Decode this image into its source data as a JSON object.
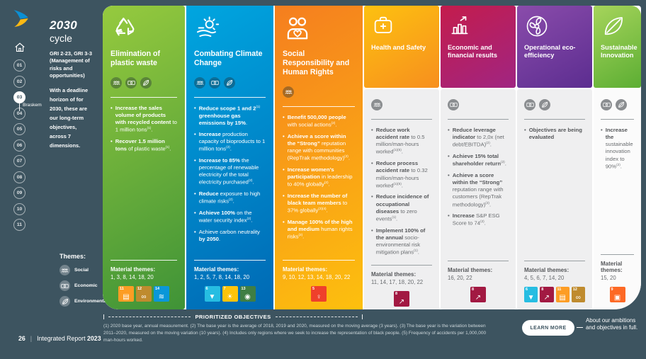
{
  "sidebar": {
    "title": "2030",
    "title_sub": "cycle",
    "gri": "GRI 2-23, GRI 3-3 (Management of risks and opportunities)",
    "intro": "With a deadline horizon of for 2030, these are our long-term objectives, across 7 dimensions.",
    "nav": {
      "items": [
        "01",
        "02",
        "03",
        "04",
        "05",
        "06",
        "07",
        "08",
        "09",
        "10",
        "11"
      ],
      "active": "03",
      "active_label": "Braskem"
    },
    "themes_legend": {
      "title": "Themes:",
      "items": [
        {
          "id": "social",
          "icon": "people-icon",
          "label": "Social"
        },
        {
          "id": "economic",
          "icon": "banknote-icon",
          "label": "Economic"
        },
        {
          "id": "environmental",
          "icon": "leaf-icon",
          "label": "Environmental"
        }
      ]
    }
  },
  "columns": [
    {
      "id": "plastic-waste",
      "layout": "full",
      "icon": "recycle-icon",
      "title": "Elimination of plastic waste",
      "header_colors": [
        "#96ca3e",
        "#3f9337"
      ],
      "themes": [
        "social",
        "economic",
        "environmental"
      ],
      "bullets": [
        "**Increase the sales volume of products with recycled content** to 1 million tons^(1)^.",
        "**Recover 1.5 million tons** of plastic waste^(1)^."
      ],
      "material_label": "Material themes:",
      "material_themes": "1, 3, 8, 14, 18, 20",
      "sdgs": [
        {
          "number": "11",
          "color": "#fd9d24"
        },
        {
          "number": "12",
          "color": "#bf8b2e"
        },
        {
          "number": "14",
          "color": "#0a97d9"
        }
      ]
    },
    {
      "id": "climate-change",
      "layout": "full",
      "icon": "climate-icon",
      "title": "Combating Climate Change",
      "header_colors": [
        "#00a6e0",
        "#0069b4"
      ],
      "themes": [
        "social",
        "economic",
        "environmental"
      ],
      "bullets": [
        "**Reduce scope 1 and 2**^(1)^ **greenhouse gas emissions by 15%**.",
        "**Increase** production capacity of bioproducts to 1 million tons^(2)^.",
        "**Increase to 85%** the percentage of renewable electricity of the total electricity purchased^(2)^.",
        "**Reduce** exposure to high climate risks^(2)^.",
        "**Achieve 100%** on the water security index^(2)^.",
        "Achieve carbon neutrality **by 2050**."
      ],
      "material_label": "Material themes:",
      "material_themes": "1, 2, 5, 7, 8, 14, 18, 20",
      "sdgs": [
        {
          "number": "6",
          "color": "#26bde2"
        },
        {
          "number": "7",
          "color": "#fcc30b"
        },
        {
          "number": "13",
          "color": "#3f7e44"
        }
      ]
    },
    {
      "id": "social-responsibility",
      "layout": "full",
      "icon": "social-responsibility-icon",
      "title": "Social Responsibility and Human Rights",
      "header_colors": [
        "#f57e1f",
        "#fdc00e"
      ],
      "themes": [
        "social"
      ],
      "bullets": [
        "**Benefit 500,000 people** with social actions^(2)^.",
        "**Achieve a score within the “Strong”** reputation range with communities (RepTrak methodology)^(2)^.",
        "**Increase women’s participation** in leadership to 40% globally^(2)^.",
        "**Increase the number of black team members** to 37% globally^(2)(4)^.",
        "**Manage 100% of the high and medium** human rights risks^(2)^."
      ],
      "material_label": "Material themes:",
      "material_themes": "9, 10, 12, 13, 14, 18, 20, 22",
      "sdgs": [
        {
          "number": "5",
          "color": "#ef402b"
        }
      ]
    },
    {
      "id": "health-safety",
      "layout": "split",
      "body_color": "#efeff0",
      "icon": "health-safety-icon",
      "title": "Health and Safety",
      "header_colors": [
        "#fdc110",
        "#f78f1e"
      ],
      "themes": [
        "social"
      ],
      "bullets": [
        "**Reduce work accident rate** to 0.5 million/man-hours worked^(1)(5)^.",
        "**Reduce process accident rate** to 0.32 million/man-hours worked^(1)(5)^.",
        "**Reduce incidence of occupational diseases** to zero events^(1)^.",
        "**Implement 100% of the annual** socio-environmental risk mitigation plans^(1)^."
      ],
      "material_label": "Material themes:",
      "material_themes": "11, 14, 17, 18, 20, 22",
      "sdgs": [
        {
          "number": "8",
          "color": "#a21942"
        }
      ]
    },
    {
      "id": "economic-results",
      "layout": "split",
      "body_color": "#efeff0",
      "icon": "economic-icon",
      "title": "Economic and financial results",
      "header_colors": [
        "#c41c4c",
        "#a02582"
      ],
      "themes": [
        "economic"
      ],
      "bullets": [
        "**Reduce leverage indicator** to 2,0x (net debt/EBITDA)^(2)^.",
        "**Achieve 15% total shareholder return**^(2)^.",
        "**Achieve a score within the “Strong”** reputation range with customers (RepTrak methodology)^(2)^.",
        "**Increase** S&P ESG Score to 74^(2)^."
      ],
      "material_label": "Material themes:",
      "material_themes": "16, 20, 22",
      "sdgs": [
        {
          "number": "8",
          "color": "#a21942"
        }
      ]
    },
    {
      "id": "eco-efficiency",
      "layout": "split",
      "body_color": "#efeff0",
      "icon": "eco-efficiency-icon",
      "title": "Operational eco-efficiency",
      "header_colors": [
        "#8a4cab",
        "#5c2d90"
      ],
      "themes": [
        "economic",
        "environmental"
      ],
      "bullets": [
        "**Objectives are being evaluated**"
      ],
      "material_label": "Material themes:",
      "material_themes": "4, 5, 6, 7, 14, 20",
      "sdgs": [
        {
          "number": "6",
          "color": "#26bde2"
        },
        {
          "number": "8",
          "color": "#a21942"
        },
        {
          "number": "11",
          "color": "#fd9d24"
        },
        {
          "number": "12",
          "color": "#bf8b2e"
        }
      ]
    },
    {
      "id": "sustainable-innovation",
      "layout": "split",
      "body_color": "#fbfbfb",
      "icon": "innovation-icon",
      "title": "Sustainable Innovation",
      "header_colors": [
        "#a6d45b",
        "#5cae33"
      ],
      "themes": [
        "economic",
        "environmental"
      ],
      "bullets": [
        "**Increase the** sustainable innovation index to 90%^(2)^."
      ],
      "material_label": "Material themes:",
      "material_themes": "15, 20",
      "sdgs": [
        {
          "number": "9",
          "color": "#fd6925"
        }
      ]
    }
  ],
  "footer": {
    "prioritized_label": "PRIORITIZED OBJECTIVES",
    "footnote": "(1) 2020 base year, annual measurement. (2) The base year is the average of 2018, 2019 and 2020, measured on the moving average (3 years). (3) The base year is the variation between 2011–2020, measured on the moving variation (10 years). (4) Includes only regions where we seek to increase the representation of black people. (5) Frequency of accidents per 1,000,000 man-hours worked.",
    "learn_more": "LEARN MORE",
    "learn_more_caption": "About our ambitions and objectives in full.",
    "page_number": "26",
    "report_title": "Integrated Report",
    "report_year": "2023"
  }
}
